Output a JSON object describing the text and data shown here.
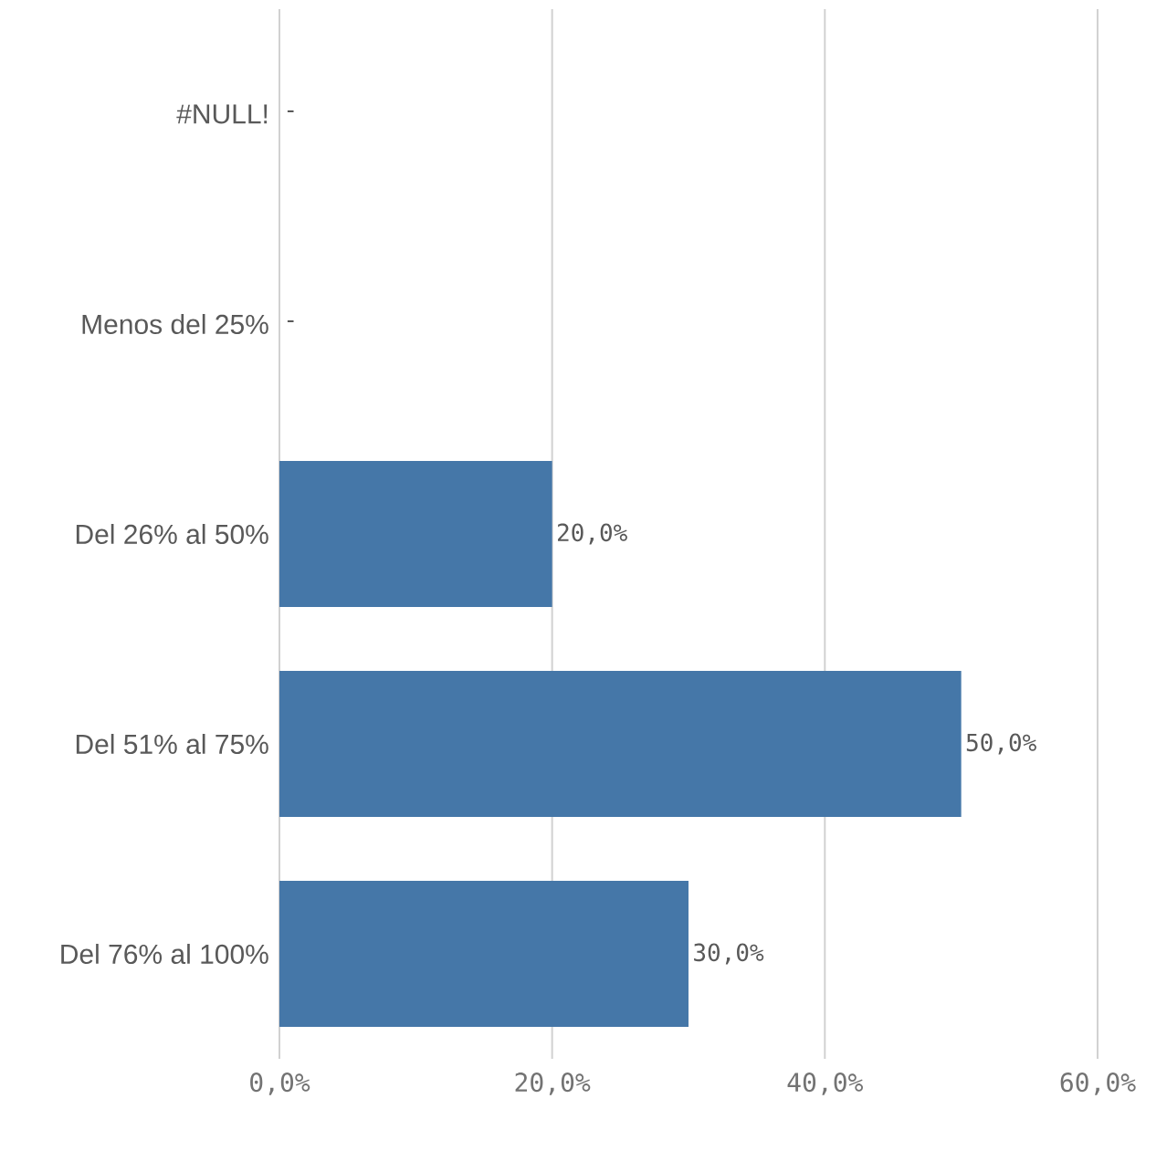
{
  "chart_data": {
    "type": "bar",
    "orientation": "horizontal",
    "categories": [
      "#NULL!",
      "Menos del 25%",
      "Del 26% al 50%",
      "Del 51% al 75%",
      "Del 76% al 100%"
    ],
    "values": [
      null,
      null,
      20,
      50,
      30
    ],
    "value_labels": [
      "-",
      "-",
      "20,0%",
      "50,0%",
      "30,0%"
    ],
    "color": "#4577a8",
    "xlim": [
      0,
      60
    ],
    "xticks": [
      {
        "value": 0,
        "label": "0,0%"
      },
      {
        "value": 20,
        "label": "20,0%"
      },
      {
        "value": 40,
        "label": "40,0%"
      },
      {
        "value": 60,
        "label": "60,0%"
      }
    ],
    "grid": "x"
  }
}
